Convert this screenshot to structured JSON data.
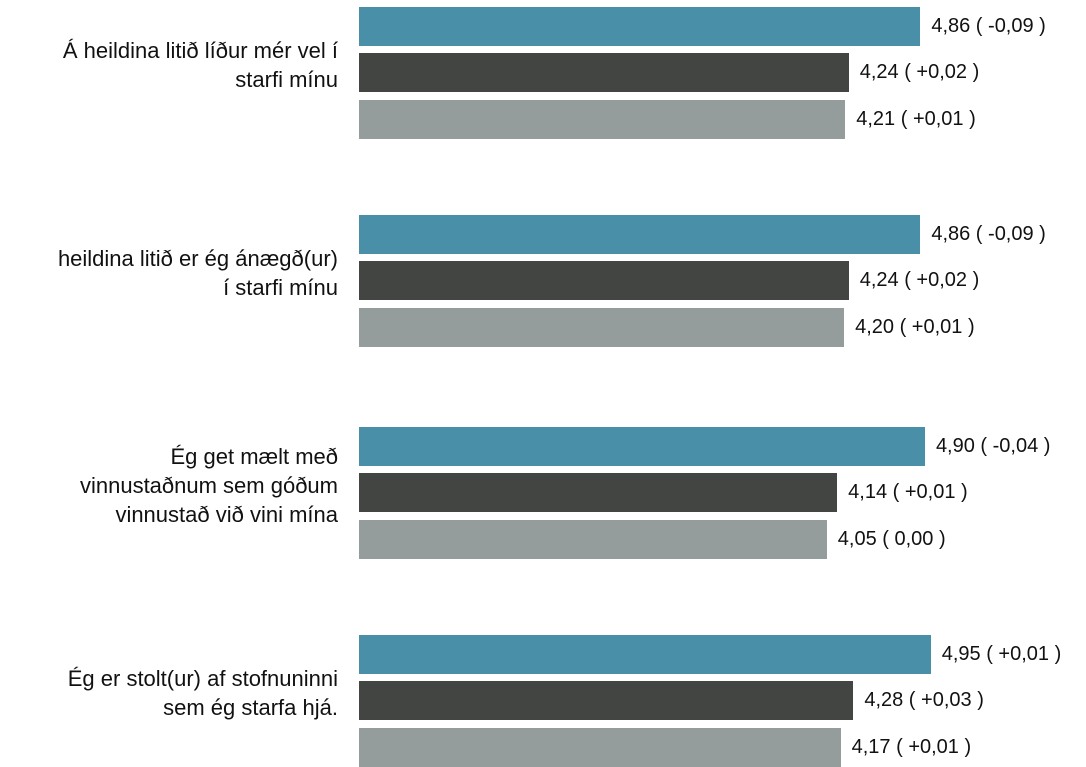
{
  "chart_data": {
    "type": "bar",
    "orientation": "horizontal",
    "categories": [
      "Á heildina litið líður mér vel í\nstarfi mínu",
      "heildina litið er ég ánægð(ur)\ní starfi mínu",
      "Ég get mælt með\nvinnustaðnum sem góðum\nvinnustað við vini mína",
      "Ég er stolt(ur) af stofnuninni\nsem ég starfa hjá."
    ],
    "series": [
      {
        "color": "#4a8fa8",
        "values": [
          4.86,
          4.86,
          4.9,
          4.95
        ],
        "labels": [
          "4,86 ( -0,09 )",
          "4,86 ( -0,09 )",
          "4,90 ( -0,04 )",
          "4,95 ( +0,01 )"
        ]
      },
      {
        "color": "#434542",
        "values": [
          4.24,
          4.24,
          4.14,
          4.28
        ],
        "labels": [
          "4,24 ( +0,02 )",
          "4,24 ( +0,02 )",
          "4,14 ( +0,01 )",
          "4,28 ( +0,03 )"
        ]
      },
      {
        "color": "#959c9c",
        "values": [
          4.21,
          4.2,
          4.05,
          4.17
        ],
        "labels": [
          "4,21 ( +0,01 )",
          "4,20 ( +0,01 )",
          "4,05 ( 0,00 )",
          "4,17 ( +0,01 )"
        ]
      }
    ],
    "xlim": [
      0,
      5
    ],
    "grid": false,
    "legend": "none"
  }
}
